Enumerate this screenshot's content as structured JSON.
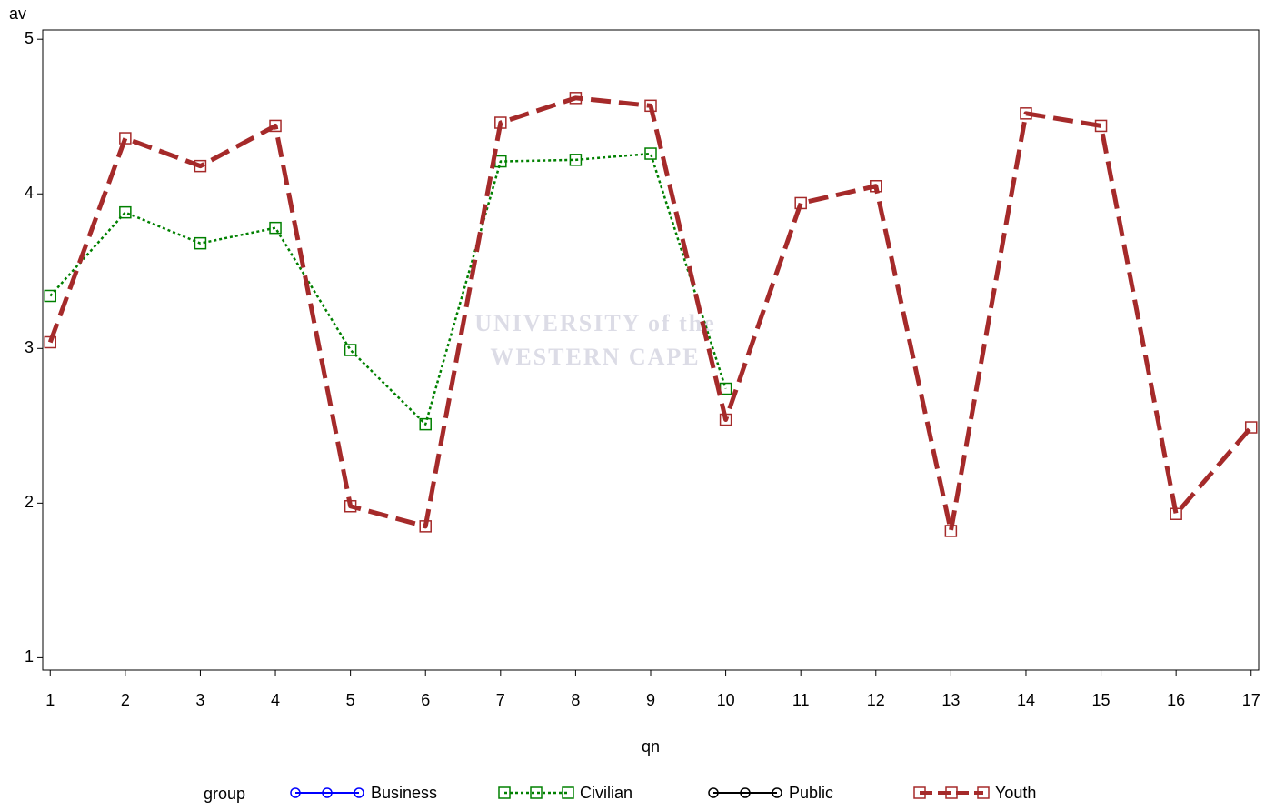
{
  "chart_data": {
    "type": "line",
    "y_label": "av",
    "x_label": "qn",
    "watermark": [
      "UNIVERSITY of the",
      "WESTERN CAPE"
    ],
    "x": [
      1,
      2,
      3,
      4,
      5,
      6,
      7,
      8,
      9,
      10,
      11,
      12,
      13,
      14,
      15,
      16,
      17
    ],
    "xlim": [
      0.9,
      17.1
    ],
    "xticks": [
      1,
      2,
      3,
      4,
      5,
      6,
      7,
      8,
      9,
      10,
      11,
      12,
      13,
      14,
      15,
      16,
      17
    ],
    "ylim": [
      0.92,
      5.06
    ],
    "yticks": [
      1,
      2,
      3,
      4,
      5
    ],
    "legend_title": "group",
    "series": [
      {
        "name": "Business",
        "color": "#0000ff",
        "line": "solid",
        "marker": "circle",
        "values": [
          null,
          null,
          null,
          null,
          null,
          null,
          null,
          null,
          null,
          null,
          null,
          null,
          null,
          null,
          null,
          null,
          null
        ]
      },
      {
        "name": "Civilian",
        "color": "#008000",
        "line": "dotted",
        "marker": "square",
        "values": [
          3.34,
          3.88,
          3.68,
          3.78,
          2.99,
          2.51,
          4.21,
          4.22,
          4.26,
          2.74,
          null,
          null,
          null,
          null,
          null,
          null,
          null
        ]
      },
      {
        "name": "Public",
        "color": "#000000",
        "line": "solid",
        "marker": "circle",
        "values": [
          null,
          null,
          null,
          null,
          null,
          null,
          null,
          null,
          null,
          null,
          null,
          null,
          null,
          null,
          null,
          null,
          null
        ]
      },
      {
        "name": "Youth",
        "color": "#a52a2a",
        "line": "dashed",
        "marker": "square",
        "values": [
          3.04,
          4.36,
          4.18,
          4.44,
          1.98,
          1.85,
          4.46,
          4.62,
          4.57,
          2.54,
          3.94,
          4.05,
          1.82,
          4.52,
          4.44,
          1.93,
          2.49
        ]
      }
    ]
  }
}
